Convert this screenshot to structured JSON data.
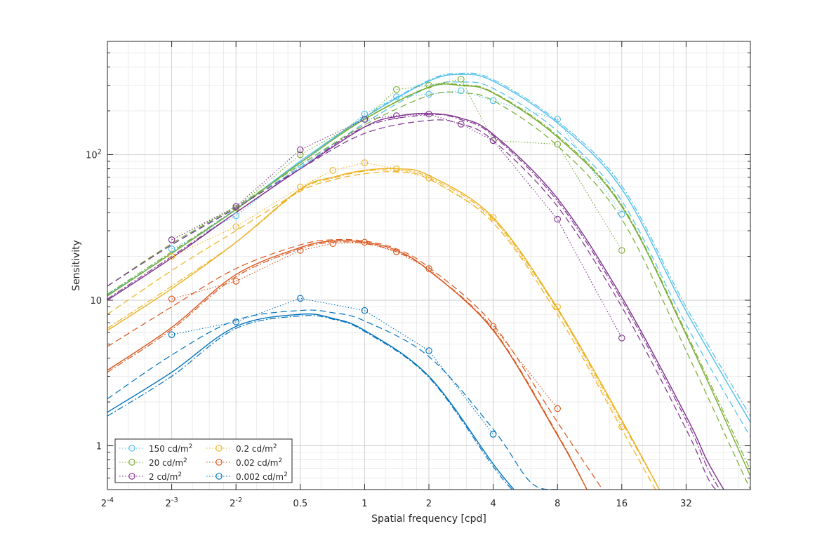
{
  "chart_data": {
    "type": "line",
    "xlabel": "Spatial frequency [cpd]",
    "ylabel": "Sensitivity",
    "xscale": "log2",
    "yscale": "log10",
    "xlim": [
      0.0625,
      64
    ],
    "ylim": [
      0.5,
      600
    ],
    "grid": true,
    "legend_location": "bottom-left",
    "x_ticks": [
      {
        "value": 0.0625,
        "base": "2",
        "exp": "-4"
      },
      {
        "value": 0.125,
        "base": "2",
        "exp": "-3"
      },
      {
        "value": 0.25,
        "base": "2",
        "exp": "-2"
      },
      {
        "value": 0.5,
        "label": "0.5"
      },
      {
        "value": 1,
        "label": "1"
      },
      {
        "value": 2,
        "label": "2"
      },
      {
        "value": 4,
        "label": "4"
      },
      {
        "value": 8,
        "label": "8"
      },
      {
        "value": 16,
        "label": "16"
      },
      {
        "value": 32,
        "label": "32"
      }
    ],
    "y_ticks": [
      {
        "value": 1,
        "label": "1"
      },
      {
        "value": 10,
        "label": "10"
      },
      {
        "value": 100,
        "base": "10",
        "exp": "2"
      }
    ],
    "series": [
      {
        "name": "150 cd/m²",
        "label_text": "150 cd/m",
        "label_sup": "2",
        "color": "#4DBEEE",
        "measured": [
          [
            0.125,
            22.5
          ],
          [
            0.25,
            38
          ],
          [
            0.5,
            85
          ],
          [
            1,
            190
          ],
          [
            1.41,
            250
          ],
          [
            2,
            260
          ],
          [
            2.83,
            275
          ],
          [
            4,
            235
          ],
          [
            8,
            175
          ],
          [
            16,
            39
          ]
        ],
        "model_solid": [
          [
            0.0625,
            10.8
          ],
          [
            0.125,
            21
          ],
          [
            0.25,
            42
          ],
          [
            0.5,
            90
          ],
          [
            1,
            180
          ],
          [
            2,
            320
          ],
          [
            2.83,
            355
          ],
          [
            4,
            320
          ],
          [
            8,
            165
          ],
          [
            16,
            58
          ],
          [
            32,
            8.4
          ],
          [
            64,
            1.45
          ]
        ],
        "model_dashed": [
          [
            0.0625,
            12.5
          ],
          [
            0.125,
            24
          ],
          [
            0.25,
            44
          ],
          [
            0.5,
            82
          ],
          [
            1,
            165
          ],
          [
            2,
            290
          ],
          [
            2.83,
            315
          ],
          [
            4,
            285
          ],
          [
            8,
            145
          ],
          [
            16,
            48
          ],
          [
            32,
            6.8
          ],
          [
            64,
            1.15
          ]
        ],
        "model_dashdot": [
          [
            0.0625,
            11
          ],
          [
            0.125,
            21.5
          ],
          [
            0.25,
            42.5
          ],
          [
            0.5,
            90
          ],
          [
            1,
            182
          ],
          [
            2,
            325
          ],
          [
            2.83,
            362
          ],
          [
            4,
            328
          ],
          [
            8,
            170
          ],
          [
            16,
            61
          ],
          [
            32,
            9
          ],
          [
            64,
            1.6
          ]
        ]
      },
      {
        "name": "20 cd/m²",
        "label_text": "20 cd/m",
        "label_sup": "2",
        "color": "#77AC30",
        "measured": [
          [
            0.125,
            26
          ],
          [
            0.25,
            43
          ],
          [
            0.5,
            100
          ],
          [
            1,
            175
          ],
          [
            1.41,
            280
          ],
          [
            2,
            300
          ],
          [
            2.83,
            330
          ],
          [
            4,
            125
          ],
          [
            8,
            118
          ],
          [
            16,
            22
          ]
        ],
        "model_solid": [
          [
            0.0625,
            10.7
          ],
          [
            0.125,
            21
          ],
          [
            0.25,
            42
          ],
          [
            0.5,
            88
          ],
          [
            1,
            175
          ],
          [
            2,
            290
          ],
          [
            2.83,
            298
          ],
          [
            4,
            265
          ],
          [
            8,
            132
          ],
          [
            16,
            44
          ],
          [
            32,
            5.8
          ],
          [
            64,
            0.62
          ]
        ],
        "model_dashed": [
          [
            0.0625,
            12.5
          ],
          [
            0.125,
            24.5
          ],
          [
            0.25,
            44
          ],
          [
            0.5,
            85
          ],
          [
            1,
            160
          ],
          [
            2,
            255
          ],
          [
            2.83,
            265
          ],
          [
            4,
            235
          ],
          [
            8,
            115
          ],
          [
            16,
            36
          ],
          [
            32,
            4.5
          ],
          [
            64,
            0.5
          ]
        ],
        "model_dashdot": [
          [
            0.0625,
            11
          ],
          [
            0.125,
            21.5
          ],
          [
            0.25,
            42
          ],
          [
            0.5,
            88
          ],
          [
            1,
            176
          ],
          [
            2,
            292
          ],
          [
            2.83,
            302
          ],
          [
            4,
            268
          ],
          [
            8,
            135
          ],
          [
            16,
            45
          ],
          [
            32,
            6
          ],
          [
            64,
            0.68
          ]
        ]
      },
      {
        "name": "2 cd/m²",
        "label_text": "2 cd/m",
        "label_sup": "2",
        "color": "#7E2F8E",
        "measured": [
          [
            0.125,
            26
          ],
          [
            0.25,
            44
          ],
          [
            0.5,
            108
          ],
          [
            1,
            175
          ],
          [
            1.41,
            185
          ],
          [
            2,
            190
          ],
          [
            2.83,
            162
          ],
          [
            4,
            125
          ],
          [
            8,
            36
          ],
          [
            16,
            5.5
          ]
        ],
        "model_solid": [
          [
            0.0625,
            10
          ],
          [
            0.125,
            19.5
          ],
          [
            0.25,
            40
          ],
          [
            0.5,
            80
          ],
          [
            1,
            155
          ],
          [
            1.41,
            183
          ],
          [
            2,
            192
          ],
          [
            2.83,
            178
          ],
          [
            4,
            138
          ],
          [
            8,
            50
          ],
          [
            16,
            10.5
          ],
          [
            32,
            1.6
          ],
          [
            40,
            0.8
          ],
          [
            48,
            0.5
          ]
        ],
        "model_dashed": [
          [
            0.0625,
            12.5
          ],
          [
            0.125,
            24
          ],
          [
            0.25,
            43
          ],
          [
            0.5,
            80
          ],
          [
            1,
            140
          ],
          [
            2,
            172
          ],
          [
            2.83,
            162
          ],
          [
            4,
            125
          ],
          [
            8,
            44
          ],
          [
            16,
            9
          ],
          [
            32,
            1.3
          ],
          [
            40,
            0.62
          ],
          [
            44,
            0.5
          ]
        ],
        "model_dashdot": [
          [
            0.0625,
            10.2
          ],
          [
            0.125,
            20
          ],
          [
            0.25,
            40
          ],
          [
            0.5,
            80
          ],
          [
            1,
            155
          ],
          [
            2,
            188
          ],
          [
            2.83,
            174
          ],
          [
            4,
            135
          ],
          [
            8,
            48
          ],
          [
            16,
            10
          ],
          [
            32,
            1.5
          ],
          [
            40,
            0.72
          ],
          [
            46,
            0.5
          ]
        ]
      },
      {
        "name": "0.2 cd/m²",
        "label_text": "0.2 cd/m",
        "label_sup": "2",
        "color": "#EDB120",
        "measured": [
          [
            0.125,
            20
          ],
          [
            0.25,
            32
          ],
          [
            0.5,
            60
          ],
          [
            0.71,
            78
          ],
          [
            1,
            88
          ],
          [
            1.41,
            80
          ],
          [
            2,
            69
          ],
          [
            4,
            37
          ],
          [
            8,
            9
          ],
          [
            16,
            1.35
          ]
        ],
        "model_solid": [
          [
            0.0625,
            6.2
          ],
          [
            0.125,
            12
          ],
          [
            0.25,
            25
          ],
          [
            0.5,
            58
          ],
          [
            0.71,
            70
          ],
          [
            1,
            78
          ],
          [
            1.41,
            80
          ],
          [
            2,
            72
          ],
          [
            4,
            37
          ],
          [
            8,
            8.8
          ],
          [
            16,
            1.5
          ],
          [
            24,
            0.5
          ]
        ],
        "model_dashed": [
          [
            0.0625,
            8
          ],
          [
            0.125,
            16
          ],
          [
            0.25,
            30
          ],
          [
            0.5,
            56
          ],
          [
            0.71,
            67
          ],
          [
            1,
            74
          ],
          [
            1.41,
            76
          ],
          [
            2,
            68
          ],
          [
            4,
            34
          ],
          [
            8,
            8
          ],
          [
            16,
            1.3
          ],
          [
            23,
            0.5
          ]
        ],
        "model_dashdot": [
          [
            0.0625,
            6.4
          ],
          [
            0.125,
            12.5
          ],
          [
            0.25,
            25
          ],
          [
            0.5,
            57
          ],
          [
            0.71,
            69
          ],
          [
            1,
            77
          ],
          [
            1.41,
            78
          ],
          [
            2,
            70
          ],
          [
            4,
            36
          ],
          [
            8,
            8.6
          ],
          [
            16,
            1.45
          ],
          [
            24,
            0.5
          ]
        ]
      },
      {
        "name": "0.02 cd/m²",
        "label_text": "0.02 cd/m",
        "label_sup": "2",
        "color": "#D95319",
        "measured": [
          [
            0.125,
            10.2
          ],
          [
            0.25,
            13.5
          ],
          [
            0.5,
            22
          ],
          [
            0.71,
            24.5
          ],
          [
            1,
            25
          ],
          [
            1.41,
            21.5
          ],
          [
            2,
            16.5
          ],
          [
            4,
            6.6
          ],
          [
            8,
            1.8
          ]
        ],
        "model_solid": [
          [
            0.0625,
            3.3
          ],
          [
            0.125,
            6.5
          ],
          [
            0.25,
            15
          ],
          [
            0.5,
            23
          ],
          [
            0.71,
            25.5
          ],
          [
            1,
            25
          ],
          [
            1.41,
            22
          ],
          [
            2,
            16
          ],
          [
            4,
            6.2
          ],
          [
            8,
            1.18
          ],
          [
            11,
            0.5
          ]
        ],
        "model_dashed": [
          [
            0.0625,
            4.8
          ],
          [
            0.125,
            9
          ],
          [
            0.25,
            16.5
          ],
          [
            0.5,
            24
          ],
          [
            0.71,
            26
          ],
          [
            1,
            25.5
          ],
          [
            1.41,
            22.5
          ],
          [
            2,
            16.8
          ],
          [
            4,
            6.8
          ],
          [
            8,
            1.45
          ],
          [
            13,
            0.5
          ]
        ],
        "model_dashdot": [
          [
            0.0625,
            3.2
          ],
          [
            0.125,
            6.3
          ],
          [
            0.25,
            14.5
          ],
          [
            0.5,
            22.5
          ],
          [
            0.71,
            25
          ],
          [
            1,
            24.5
          ],
          [
            1.41,
            21.5
          ],
          [
            2,
            16
          ],
          [
            4,
            6.3
          ],
          [
            8,
            1.2
          ],
          [
            11,
            0.5
          ]
        ]
      },
      {
        "name": "0.002 cd/m²",
        "label_text": "0.002 cd/m",
        "label_sup": "2",
        "color": "#0072BD",
        "measured": [
          [
            0.125,
            5.8
          ],
          [
            0.25,
            7.1
          ],
          [
            0.5,
            10.3
          ],
          [
            1,
            8.5
          ],
          [
            2,
            4.5
          ],
          [
            4,
            1.2
          ]
        ],
        "model_solid": [
          [
            0.0625,
            1.7
          ],
          [
            0.125,
            3.2
          ],
          [
            0.25,
            6.6
          ],
          [
            0.5,
            8
          ],
          [
            0.71,
            7.5
          ],
          [
            1,
            6.2
          ],
          [
            2,
            3
          ],
          [
            4,
            0.75
          ],
          [
            5,
            0.5
          ]
        ],
        "model_dashed": [
          [
            0.0625,
            2.1
          ],
          [
            0.125,
            4.2
          ],
          [
            0.25,
            7.3
          ],
          [
            0.5,
            8.5
          ],
          [
            0.71,
            8.2
          ],
          [
            1,
            7.2
          ],
          [
            2,
            4.1
          ],
          [
            4,
            1.3
          ],
          [
            6,
            0.56
          ],
          [
            8,
            0.5
          ]
        ],
        "model_dashdot": [
          [
            0.0625,
            1.6
          ],
          [
            0.125,
            3
          ],
          [
            0.25,
            6.4
          ],
          [
            0.5,
            7.8
          ],
          [
            0.71,
            7.4
          ],
          [
            1,
            6.1
          ],
          [
            2,
            2.95
          ],
          [
            4,
            0.72
          ],
          [
            4.9,
            0.5
          ]
        ]
      }
    ]
  }
}
